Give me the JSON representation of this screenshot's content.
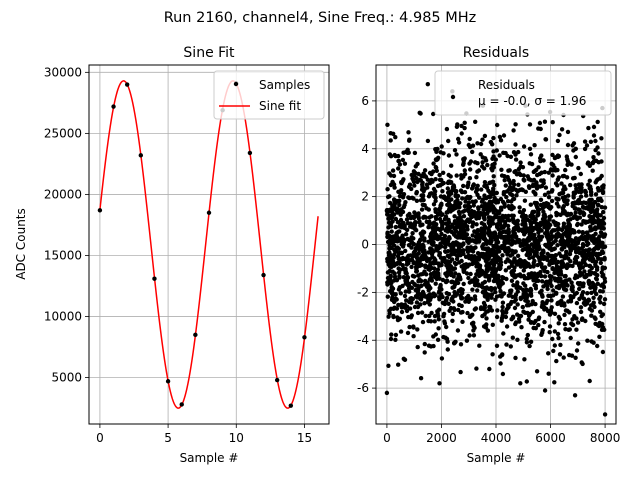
{
  "suptitle": "Run 2160, channel4, Sine Freq.: 4.985 MHz",
  "chart_data": [
    {
      "type": "line",
      "title": "Sine Fit",
      "xlabel": "Sample #",
      "ylabel": "ADC Counts",
      "xlim": [
        -0.8,
        16.8
      ],
      "ylim": [
        1200,
        30600
      ],
      "xticks": [
        0,
        5,
        10,
        15
      ],
      "yticks": [
        5000,
        10000,
        15000,
        20000,
        25000,
        30000
      ],
      "grid": true,
      "legend_position": "top-right",
      "series": [
        {
          "name": "Samples",
          "style": "points",
          "color": "#000000",
          "x": [
            0,
            1,
            2,
            3,
            4,
            5,
            6,
            7,
            8,
            9,
            10,
            11,
            12,
            13,
            14,
            15
          ],
          "y": [
            18700,
            27200,
            29000,
            23200,
            13100,
            4700,
            2800,
            8500,
            18500,
            26900,
            29100,
            23400,
            13400,
            4800,
            2700,
            8300
          ]
        },
        {
          "name": "Sine fit",
          "style": "line",
          "color": "#ff0000",
          "model": {
            "amplitude": 13400,
            "offset": 15900,
            "period_samples": 8.025,
            "phase": 0.2126,
            "x_range": [
              0,
              16
            ]
          }
        }
      ]
    },
    {
      "type": "scatter",
      "title": "Residuals",
      "xlabel": "Sample #",
      "ylabel": "",
      "xlim": [
        -400,
        8400
      ],
      "ylim": [
        -7.5,
        7.5
      ],
      "xticks": [
        0,
        2000,
        4000,
        6000,
        8000
      ],
      "yticks": [
        -6,
        -4,
        -2,
        0,
        2,
        4,
        6
      ],
      "grid": true,
      "legend_position": "top-right",
      "series": [
        {
          "name": "Residuals\nμ = -0.0, σ = 1.96",
          "color": "#000000",
          "x": [
            0,
            1500,
            2400,
            7900,
            20,
            5800,
            6900,
            8000
          ],
          "y": [
            -6.2,
            6.7,
            6.4,
            5.7,
            5.0,
            -6.1,
            -6.3,
            -7.1
          ],
          "distribution": {
            "n": 8000,
            "mean": -0.0,
            "std": 1.96
          }
        }
      ]
    }
  ]
}
